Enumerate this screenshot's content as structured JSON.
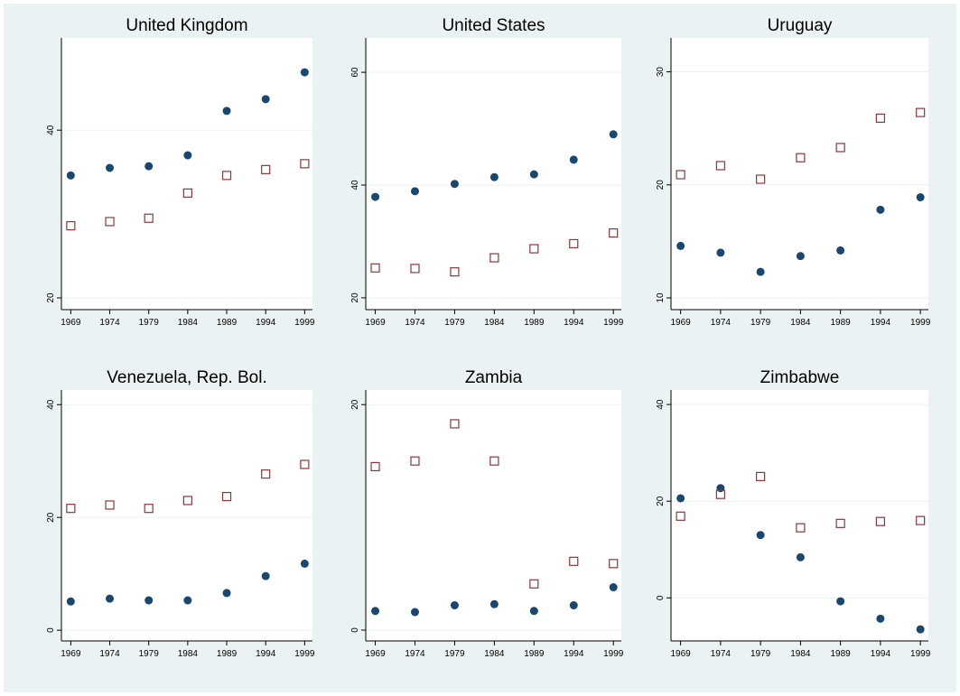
{
  "chart_data": [
    {
      "type": "scatter",
      "title": "United Kingdom",
      "grid": true,
      "x": [
        1969,
        1974,
        1979,
        1984,
        1989,
        1994,
        1999
      ],
      "series": [
        {
          "color": "#1a476f",
          "marker": "circle",
          "values": [
            34.6,
            35.5,
            35.7,
            37.0,
            42.3,
            43.7,
            46.9
          ]
        },
        {
          "color": "#90353b",
          "marker": "square",
          "values": [
            28.6,
            29.1,
            29.5,
            32.5,
            34.6,
            35.3,
            36.0
          ]
        }
      ],
      "xlim": [
        1967.8,
        2000
      ],
      "xticks": [
        1969,
        1974,
        1979,
        1984,
        1989,
        1994,
        1999
      ],
      "ylim": [
        18.6,
        51
      ],
      "yticks": [
        20,
        40
      ]
    },
    {
      "type": "scatter",
      "title": "United States",
      "grid": true,
      "x": [
        1969,
        1974,
        1979,
        1984,
        1989,
        1994,
        1999
      ],
      "series": [
        {
          "color": "#1a476f",
          "marker": "circle",
          "values": [
            37.9,
            38.9,
            40.2,
            41.4,
            41.9,
            44.5,
            49.0
          ]
        },
        {
          "color": "#90353b",
          "marker": "square",
          "values": [
            25.3,
            25.2,
            24.6,
            27.1,
            28.7,
            29.6,
            31.5
          ]
        }
      ],
      "xlim": [
        1967.8,
        2000
      ],
      "xticks": [
        1969,
        1974,
        1979,
        1984,
        1989,
        1994,
        1999
      ],
      "ylim": [
        17.9,
        66.1
      ],
      "yticks": [
        20,
        40,
        60
      ]
    },
    {
      "type": "scatter",
      "title": "Uruguay",
      "grid": true,
      "x": [
        1969,
        1974,
        1979,
        1984,
        1989,
        1994,
        1999
      ],
      "series": [
        {
          "color": "#1a476f",
          "marker": "circle",
          "values": [
            14.6,
            14.0,
            12.3,
            13.7,
            14.2,
            17.8,
            18.9
          ]
        },
        {
          "color": "#90353b",
          "marker": "square",
          "values": [
            20.9,
            21.7,
            20.5,
            22.4,
            23.3,
            25.9,
            26.4
          ]
        }
      ],
      "xlim": [
        1967.8,
        2000
      ],
      "xticks": [
        1969,
        1974,
        1979,
        1984,
        1989,
        1994,
        1999
      ],
      "ylim": [
        8.96,
        33.0
      ],
      "yticks": [
        10,
        20,
        30
      ]
    },
    {
      "type": "scatter",
      "title": "Venezuela, Rep. Bol.",
      "grid": true,
      "x": [
        1969,
        1974,
        1979,
        1984,
        1989,
        1994,
        1999
      ],
      "series": [
        {
          "color": "#1a476f",
          "marker": "circle",
          "values": [
            5.1,
            5.6,
            5.3,
            5.3,
            6.6,
            9.6,
            11.8
          ]
        },
        {
          "color": "#90353b",
          "marker": "square",
          "values": [
            21.6,
            22.2,
            21.6,
            23.0,
            23.7,
            27.7,
            29.4
          ]
        }
      ],
      "xlim": [
        1967.8,
        2000
      ],
      "xticks": [
        1969,
        1974,
        1979,
        1984,
        1989,
        1994,
        1999
      ],
      "ylim": [
        -1.9,
        42.6
      ],
      "yticks": [
        0,
        20,
        40
      ]
    },
    {
      "type": "scatter",
      "title": "Zambia",
      "grid": true,
      "x": [
        1969,
        1974,
        1979,
        1984,
        1989,
        1994,
        1999
      ],
      "series": [
        {
          "color": "#1a476f",
          "marker": "circle",
          "values": [
            1.7,
            1.6,
            2.2,
            2.3,
            1.7,
            2.2,
            3.8
          ]
        },
        {
          "color": "#90353b",
          "marker": "square",
          "values": [
            14.5,
            15.0,
            18.3,
            15.0,
            4.1,
            6.1,
            5.9
          ]
        }
      ],
      "xlim": [
        1967.8,
        2000
      ],
      "xticks": [
        1969,
        1974,
        1979,
        1984,
        1989,
        1994,
        1999
      ],
      "ylim": [
        -0.96,
        21.3
      ],
      "yticks": [
        0,
        20
      ]
    },
    {
      "type": "scatter",
      "title": "Zimbabwe",
      "grid": true,
      "x": [
        1969,
        1974,
        1979,
        1984,
        1989,
        1994,
        1999
      ],
      "series": [
        {
          "color": "#1a476f",
          "marker": "circle",
          "values": [
            20.6,
            22.7,
            13.0,
            8.4,
            -0.7,
            -4.3,
            -6.5
          ]
        },
        {
          "color": "#90353b",
          "marker": "square",
          "values": [
            16.9,
            21.4,
            25.1,
            14.5,
            15.4,
            15.8,
            16.0
          ]
        }
      ],
      "xlim": [
        1967.8,
        2000
      ],
      "xticks": [
        1969,
        1974,
        1979,
        1984,
        1989,
        1994,
        1999
      ],
      "ylim": [
        -8.9,
        43.0
      ],
      "yticks": [
        0,
        20,
        40
      ]
    }
  ]
}
